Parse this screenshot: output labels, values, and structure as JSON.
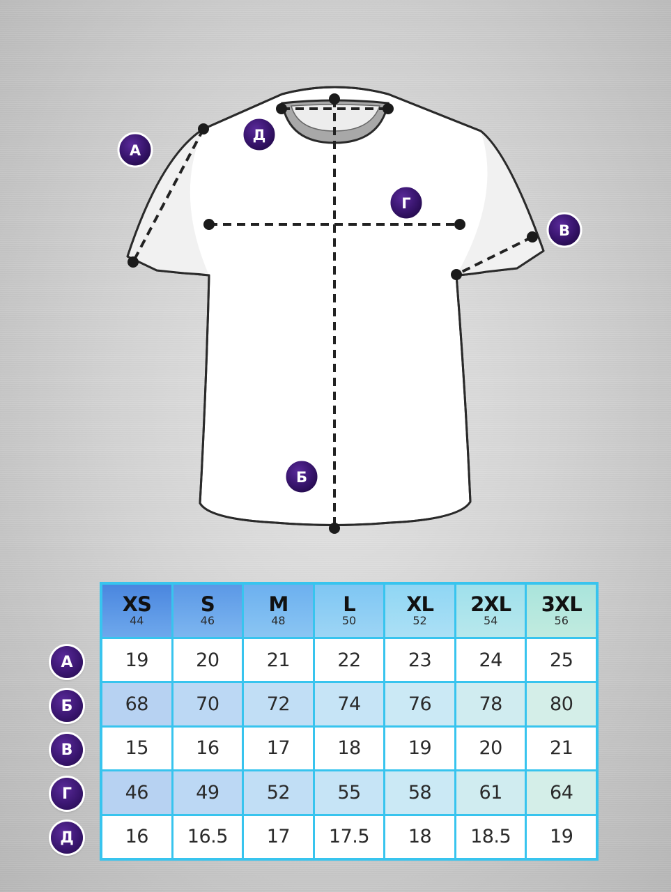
{
  "diagram": {
    "measurement_labels": {
      "a": "А",
      "b": "Б",
      "v": "В",
      "g": "Г",
      "d": "Д"
    },
    "colors": {
      "badge": "#3a1670",
      "table_border": "#38c4ee",
      "tshirt": "#ffffff",
      "collar": "#a8a8a8"
    }
  },
  "table": {
    "sizes": [
      {
        "label": "XS",
        "ru": "44"
      },
      {
        "label": "S",
        "ru": "46"
      },
      {
        "label": "M",
        "ru": "48"
      },
      {
        "label": "L",
        "ru": "50"
      },
      {
        "label": "XL",
        "ru": "52"
      },
      {
        "label": "2XL",
        "ru": "54"
      },
      {
        "label": "3XL",
        "ru": "56"
      }
    ],
    "rows": [
      {
        "label": "А",
        "values": [
          "19",
          "20",
          "21",
          "22",
          "23",
          "24",
          "25"
        ]
      },
      {
        "label": "Б",
        "values": [
          "68",
          "70",
          "72",
          "74",
          "76",
          "78",
          "80"
        ]
      },
      {
        "label": "В",
        "values": [
          "15",
          "16",
          "17",
          "18",
          "19",
          "20",
          "21"
        ]
      },
      {
        "label": "Г",
        "values": [
          "46",
          "49",
          "52",
          "55",
          "58",
          "61",
          "64"
        ]
      },
      {
        "label": "Д",
        "values": [
          "16",
          "16.5",
          "17",
          "17.5",
          "18",
          "18.5",
          "19"
        ]
      }
    ]
  }
}
